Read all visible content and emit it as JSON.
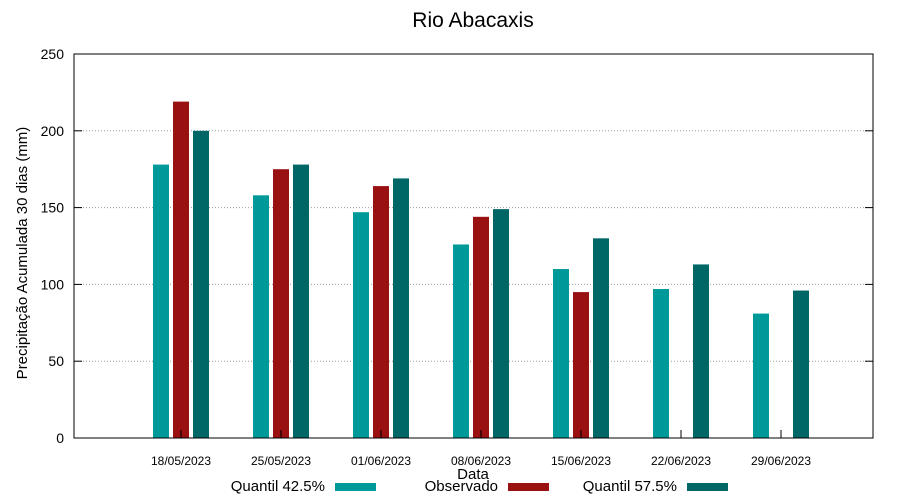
{
  "chart_data": {
    "type": "bar",
    "title": "Rio Abacaxis",
    "xlabel": "Data",
    "ylabel": "Precipitação Acumulada 30 dias (mm)",
    "ylim": [
      0,
      250
    ],
    "yticks": [
      0,
      50,
      100,
      150,
      200,
      250
    ],
    "grid": true,
    "legend_position": "bottom",
    "categories": [
      "18/05/2023",
      "25/05/2023",
      "01/06/2023",
      "08/06/2023",
      "15/06/2023",
      "22/06/2023",
      "29/06/2023"
    ],
    "series": [
      {
        "name": "Quantil 42.5%",
        "color": "#009999",
        "values": [
          178,
          158,
          147,
          126,
          110,
          97,
          81
        ]
      },
      {
        "name": "Observado",
        "color": "#991111",
        "values": [
          219,
          175,
          164,
          144,
          95,
          null,
          null
        ]
      },
      {
        "name": "Quantil 57.5%",
        "color": "#006666",
        "values": [
          200,
          178,
          169,
          149,
          130,
          113,
          96
        ]
      }
    ]
  }
}
